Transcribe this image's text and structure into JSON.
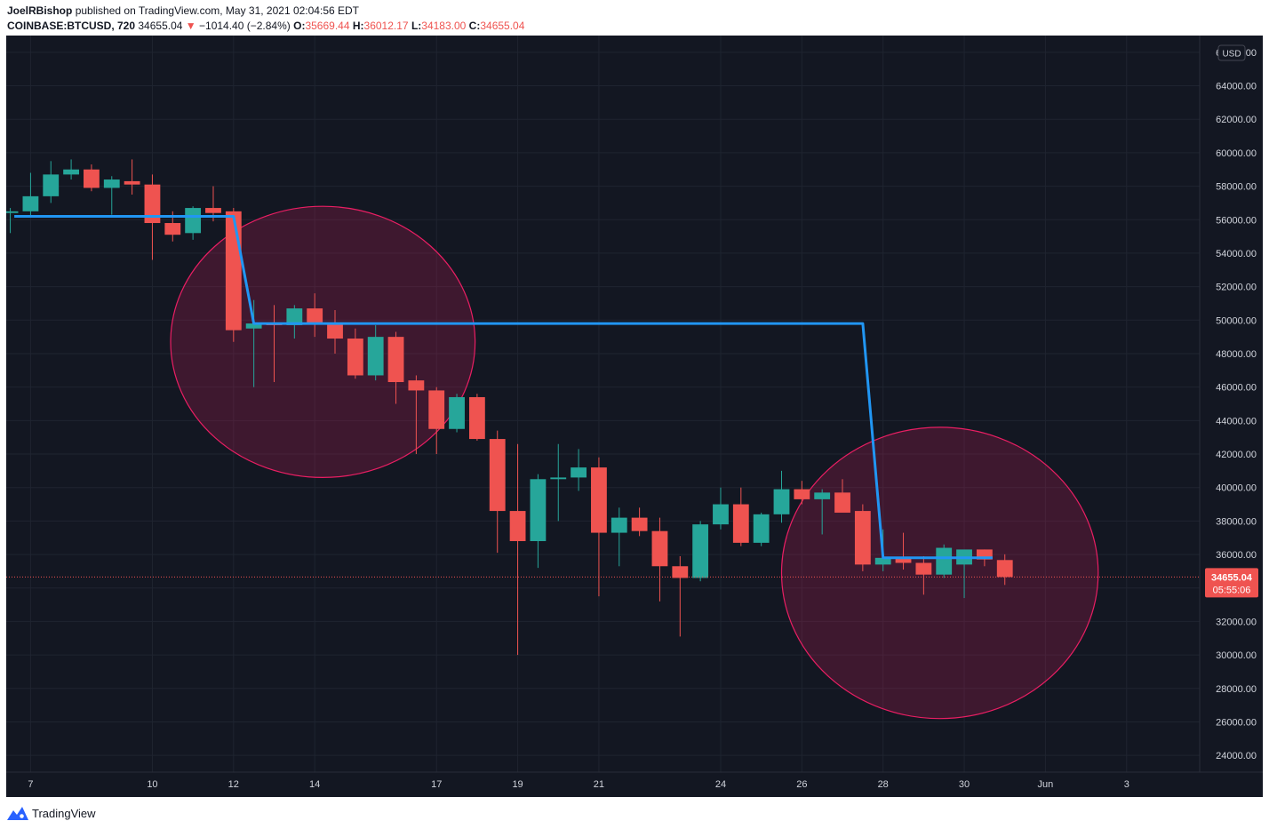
{
  "header": {
    "author": "JoelRBishop",
    "published_text": "published on TradingView.com, May 31, 2021 02:04:56 EDT",
    "symbol": "COINBASE:BTCUSD, 720",
    "last": "34655.04",
    "change": "−1014.40 (−2.84%)",
    "o_label": "O:",
    "o_value": "35669.44",
    "h_label": "H:",
    "h_value": "36012.17",
    "l_label": "L:",
    "l_value": "34183.00",
    "c_label": "C:",
    "c_value": "34655.04"
  },
  "footer": {
    "brand": "TradingView",
    "brand_icon": "tradingview-logo-icon"
  },
  "colors": {
    "up": "#26a69a",
    "down": "#ef5350",
    "line": "#2196f3",
    "ellipse": "#e91e63",
    "background": "#131722",
    "grid": "#1f2430"
  },
  "chart_data": {
    "type": "candlestick",
    "currency_badge": "USD",
    "y_ticks": [
      "66000.00",
      "64000.00",
      "62000.00",
      "60000.00",
      "58000.00",
      "56000.00",
      "54000.00",
      "52000.00",
      "50000.00",
      "48000.00",
      "46000.00",
      "44000.00",
      "42000.00",
      "40000.00",
      "38000.00",
      "36000.00",
      "34000.00",
      "32000.00",
      "30000.00",
      "28000.00",
      "26000.00",
      "24000.00"
    ],
    "ylim": [
      23000,
      67000
    ],
    "x_ticks": [
      {
        "label": "7",
        "day": 7
      },
      {
        "label": "10",
        "day": 10
      },
      {
        "label": "12",
        "day": 12
      },
      {
        "label": "14",
        "day": 14
      },
      {
        "label": "17",
        "day": 17
      },
      {
        "label": "19",
        "day": 19
      },
      {
        "label": "21",
        "day": 21
      },
      {
        "label": "24",
        "day": 24
      },
      {
        "label": "26",
        "day": 26
      },
      {
        "label": "28",
        "day": 28
      },
      {
        "label": "30",
        "day": 30
      },
      {
        "label": "Jun",
        "day": 32
      },
      {
        "label": "3",
        "day": 34
      }
    ],
    "xlim": [
      6.4,
      35.8
    ],
    "candles": [
      {
        "t": 6.5,
        "o": 56400,
        "h": 56700,
        "l": 55200,
        "c": 56500
      },
      {
        "t": 7.0,
        "o": 56500,
        "h": 58800,
        "l": 56200,
        "c": 57400
      },
      {
        "t": 7.5,
        "o": 57400,
        "h": 59500,
        "l": 57000,
        "c": 58700
      },
      {
        "t": 8.0,
        "o": 58700,
        "h": 59600,
        "l": 58400,
        "c": 59000
      },
      {
        "t": 8.5,
        "o": 59000,
        "h": 59300,
        "l": 57700,
        "c": 57900
      },
      {
        "t": 9.0,
        "o": 57900,
        "h": 58600,
        "l": 56300,
        "c": 58400
      },
      {
        "t": 9.5,
        "o": 58300,
        "h": 59600,
        "l": 57500,
        "c": 58100
      },
      {
        "t": 10.0,
        "o": 58100,
        "h": 58700,
        "l": 53600,
        "c": 55800
      },
      {
        "t": 10.5,
        "o": 55800,
        "h": 56500,
        "l": 54700,
        "c": 55100
      },
      {
        "t": 11.0,
        "o": 55200,
        "h": 56800,
        "l": 54800,
        "c": 56700
      },
      {
        "t": 11.5,
        "o": 56700,
        "h": 58000,
        "l": 55900,
        "c": 56400
      },
      {
        "t": 12.0,
        "o": 56500,
        "h": 56700,
        "l": 48700,
        "c": 49400
      },
      {
        "t": 12.5,
        "o": 49500,
        "h": 51200,
        "l": 46000,
        "c": 49800
      },
      {
        "t": 13.0,
        "o": 49800,
        "h": 50900,
        "l": 46300,
        "c": 49700
      },
      {
        "t": 13.5,
        "o": 49700,
        "h": 50900,
        "l": 48900,
        "c": 50700
      },
      {
        "t": 14.0,
        "o": 50700,
        "h": 51600,
        "l": 49000,
        "c": 49800
      },
      {
        "t": 14.5,
        "o": 49800,
        "h": 50600,
        "l": 48000,
        "c": 48900
      },
      {
        "t": 15.0,
        "o": 48900,
        "h": 49500,
        "l": 46500,
        "c": 46700
      },
      {
        "t": 15.5,
        "o": 46700,
        "h": 49700,
        "l": 46400,
        "c": 49000
      },
      {
        "t": 16.0,
        "o": 49000,
        "h": 49300,
        "l": 45000,
        "c": 46300
      },
      {
        "t": 16.5,
        "o": 46400,
        "h": 46700,
        "l": 42000,
        "c": 45800
      },
      {
        "t": 17.0,
        "o": 45800,
        "h": 46000,
        "l": 42000,
        "c": 43500
      },
      {
        "t": 17.5,
        "o": 43500,
        "h": 45600,
        "l": 43300,
        "c": 45400
      },
      {
        "t": 18.0,
        "o": 45400,
        "h": 45600,
        "l": 42800,
        "c": 42900
      },
      {
        "t": 18.5,
        "o": 42900,
        "h": 43400,
        "l": 36100,
        "c": 38600
      },
      {
        "t": 19.0,
        "o": 38600,
        "h": 42600,
        "l": 30000,
        "c": 36800
      },
      {
        "t": 19.5,
        "o": 36800,
        "h": 40800,
        "l": 35200,
        "c": 40500
      },
      {
        "t": 20.0,
        "o": 40500,
        "h": 42600,
        "l": 38000,
        "c": 40600
      },
      {
        "t": 20.5,
        "o": 40600,
        "h": 42300,
        "l": 39800,
        "c": 41200
      },
      {
        "t": 21.0,
        "o": 41200,
        "h": 41800,
        "l": 33500,
        "c": 37300
      },
      {
        "t": 21.5,
        "o": 37300,
        "h": 38800,
        "l": 35300,
        "c": 38200
      },
      {
        "t": 22.0,
        "o": 38200,
        "h": 38800,
        "l": 37100,
        "c": 37400
      },
      {
        "t": 22.5,
        "o": 37400,
        "h": 38200,
        "l": 33200,
        "c": 35300
      },
      {
        "t": 23.0,
        "o": 35300,
        "h": 35900,
        "l": 31100,
        "c": 34600
      },
      {
        "t": 23.5,
        "o": 34600,
        "h": 38000,
        "l": 34400,
        "c": 37800
      },
      {
        "t": 24.0,
        "o": 37800,
        "h": 40000,
        "l": 37500,
        "c": 39000
      },
      {
        "t": 24.5,
        "o": 39000,
        "h": 40000,
        "l": 36500,
        "c": 36700
      },
      {
        "t": 25.0,
        "o": 36700,
        "h": 38500,
        "l": 36500,
        "c": 38400
      },
      {
        "t": 25.5,
        "o": 38400,
        "h": 41000,
        "l": 37900,
        "c": 39900
      },
      {
        "t": 26.0,
        "o": 39900,
        "h": 40400,
        "l": 39000,
        "c": 39300
      },
      {
        "t": 26.5,
        "o": 39300,
        "h": 39900,
        "l": 37200,
        "c": 39700
      },
      {
        "t": 27.0,
        "o": 39700,
        "h": 40500,
        "l": 38600,
        "c": 38500
      },
      {
        "t": 27.5,
        "o": 38600,
        "h": 39000,
        "l": 35000,
        "c": 35400
      },
      {
        "t": 28.0,
        "o": 35400,
        "h": 37500,
        "l": 35000,
        "c": 35800
      },
      {
        "t": 28.5,
        "o": 35800,
        "h": 37300,
        "l": 35100,
        "c": 35500
      },
      {
        "t": 29.0,
        "o": 35500,
        "h": 35900,
        "l": 33600,
        "c": 34800
      },
      {
        "t": 29.5,
        "o": 34800,
        "h": 36600,
        "l": 34600,
        "c": 36400
      },
      {
        "t": 30.0,
        "o": 35400,
        "h": 36000,
        "l": 33400,
        "c": 36300
      },
      {
        "t": 30.5,
        "o": 36300,
        "h": 36300,
        "l": 35300,
        "c": 35700
      },
      {
        "t": 31.0,
        "o": 35669.44,
        "h": 36012.17,
        "l": 34183,
        "c": 34655.04
      }
    ],
    "levels_line": [
      {
        "t": 6.6,
        "v": 56200
      },
      {
        "t": 12.0,
        "v": 56200
      },
      {
        "t": 12.5,
        "v": 49800
      },
      {
        "t": 27.5,
        "v": 49800
      },
      {
        "t": 28.0,
        "v": 35800
      },
      {
        "t": 30.7,
        "v": 35800
      }
    ],
    "ellipses": [
      {
        "t_center": 14.2,
        "v_center": 48700,
        "t_radius": 3.75,
        "v_radius": 8100
      },
      {
        "t_center": 29.4,
        "v_center": 34900,
        "t_radius": 3.9,
        "v_radius": 8700
      }
    ],
    "last_price": "34655.04",
    "last_price_value": 34655.04,
    "countdown": "05:55:06"
  }
}
